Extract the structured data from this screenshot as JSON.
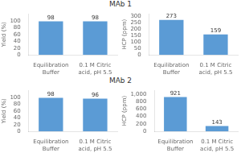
{
  "chart_data": [
    {
      "type": "bar",
      "title": "MAb 1",
      "categories": [
        "Equilibration\nBuffer",
        "0.1 M Citric\nacid, pH 5.5"
      ],
      "values": [
        98,
        98
      ],
      "color": "#5b9bd5",
      "ylabel": "Yield (%)",
      "ylim": [
        0,
        120
      ],
      "yticks": [
        0,
        20,
        40,
        60,
        80,
        100
      ],
      "grid": false,
      "data_labels": true
    },
    {
      "type": "bar",
      "categories": [
        "Equilibration\nBuffer",
        "0.1 M Citric\nacid, pH 5.5"
      ],
      "values": [
        273,
        159
      ],
      "color": "#5b9bd5",
      "ylabel": "HCP (ppm)",
      "ylim": [
        0,
        320
      ],
      "yticks": [
        0,
        50,
        100,
        150,
        200,
        250,
        300
      ],
      "grid": false,
      "data_labels": true
    },
    {
      "type": "bar",
      "title": "MAb 2",
      "categories": [
        "Equilibration\nBuffer",
        "0.1 M Citric\nacid, pH 5.5"
      ],
      "values": [
        98,
        96
      ],
      "color": "#5b9bd5",
      "ylabel": "Yield (%)",
      "ylim": [
        0,
        120
      ],
      "yticks": [
        0,
        20,
        40,
        60,
        80,
        100
      ],
      "grid": false,
      "data_labels": true
    },
    {
      "type": "bar",
      "categories": [
        "Equilibration\nBuffer",
        "0.1 M Citric\nacid, pH 5.5"
      ],
      "values": [
        921,
        143
      ],
      "color": "#5b9bd5",
      "ylabel": "HCP (ppm)",
      "ylim": [
        0,
        1100
      ],
      "yticks": [
        0,
        200,
        400,
        600,
        800,
        {
          "value": 1000,
          "label": "1,000"
        }
      ],
      "grid": false,
      "data_labels": true
    }
  ]
}
